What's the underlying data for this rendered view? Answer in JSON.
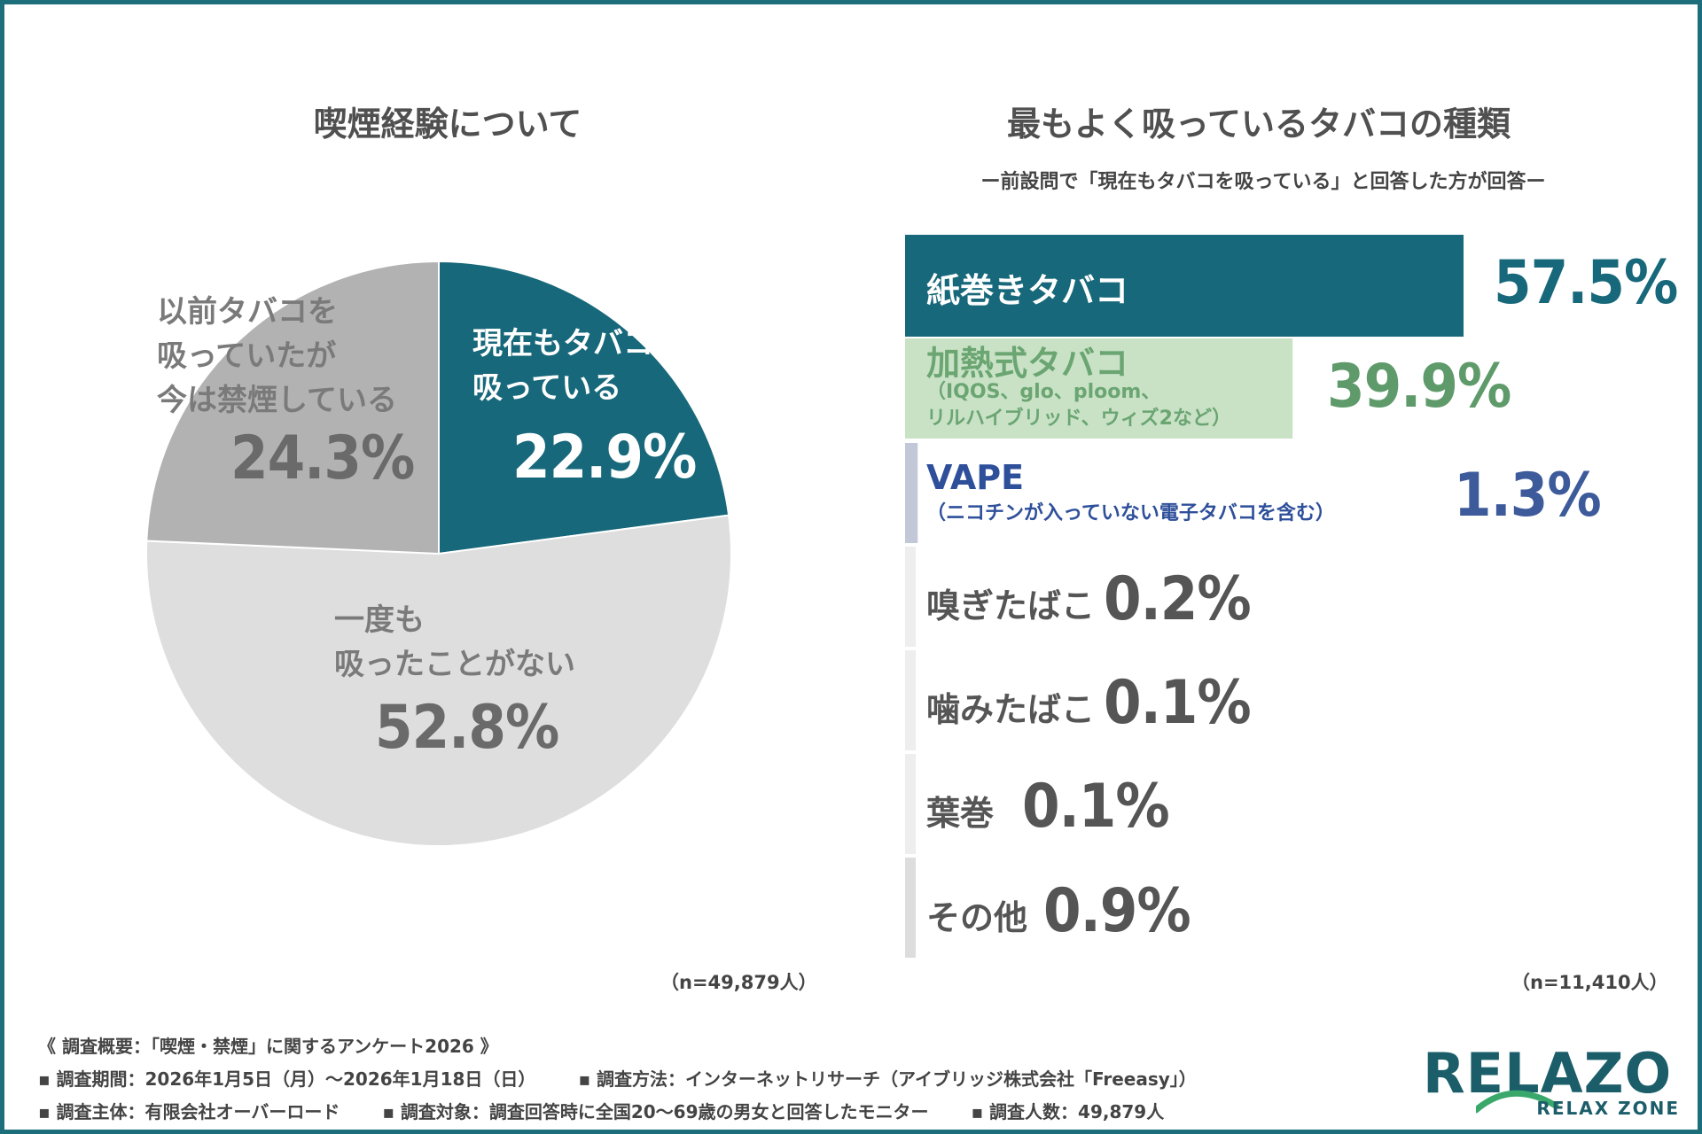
{
  "left": {
    "title": "喫煙経験について",
    "n_note": "（n=49,879人）"
  },
  "right": {
    "title": "最もよく吸っているタバコの種類",
    "subtitle": "ー前設問で「現在もタバコを吸っている」と回答した方が回答ー",
    "n_note": "（n=11,410人）"
  },
  "chart_data": [
    {
      "type": "pie",
      "title": "喫煙経験について",
      "slices": [
        {
          "label": "現在もタバコを吸っている",
          "label_lines": [
            "現在もタバコを",
            "吸っている"
          ],
          "value": 22.9,
          "display": "22.9%",
          "color": "#17687a"
        },
        {
          "label": "一度も吸ったことがない",
          "label_lines": [
            "一度も",
            "吸ったことがない"
          ],
          "value": 52.8,
          "display": "52.8%",
          "color": "#dedede"
        },
        {
          "label": "以前タバコを吸っていたが今は禁煙している",
          "label_lines": [
            "以前タバコを",
            "吸っていたが",
            "今は禁煙している"
          ],
          "value": 24.3,
          "display": "24.3%",
          "color": "#b2b2b2"
        }
      ]
    },
    {
      "type": "bar",
      "title": "最もよく吸っているタバコの種類",
      "categories": [
        "紙巻きタバコ",
        "加熱式タバコ",
        "VAPE",
        "嗅ぎたばこ",
        "噛みたばこ",
        "葉巻",
        "その他"
      ],
      "subcaptions": [
        "",
        "（IQOS、glo、ploom、\nリルハイブリッド、ウィズ2など）",
        "（ニコチンが入っていない電子タバコを含む）",
        "",
        "",
        "",
        ""
      ],
      "values": [
        57.5,
        39.9,
        1.3,
        0.2,
        0.1,
        0.1,
        0.9
      ],
      "display": [
        "57.5%",
        "39.9%",
        "1.3%",
        "0.2%",
        "0.1%",
        "0.1%",
        "0.9%"
      ],
      "colors": [
        "#17687a",
        "#c9e2c6",
        "#c2c8d8",
        "#eeeeee",
        "#eeeeee",
        "#eeeeee",
        "#dddddd"
      ],
      "pct_colors": [
        "#17687a",
        "#5e9a6a",
        "#3d5a9a",
        "#555555",
        "#555555",
        "#555555",
        "#555555"
      ],
      "label_colors": [
        "#ffffff",
        "#6aa572",
        "#2e4f9a",
        "#555555",
        "#555555",
        "#555555",
        "#555555"
      ]
    }
  ],
  "footer": {
    "line1": "《 調査概要：「喫煙・禁煙」に関するアンケート2026 》",
    "period": "▪ 調査期間：2026年1月5日（月）〜2026年1月18日（日）",
    "method": "▪ 調査方法：インターネットリサーチ（アイブリッジ株式会社「Freeasy」）",
    "organizer": "▪ 調査主体：有限会社オーバーロード",
    "target": "▪ 調査対象：調査回答時に全国20〜69歳の男女と回答したモニター",
    "count": "▪ 調査人数：49,879人"
  },
  "logo": {
    "name": "RELAZO",
    "tagline": "RELAX ZONE",
    "color": "#1b5e6a",
    "accent": "#3aa86b"
  }
}
